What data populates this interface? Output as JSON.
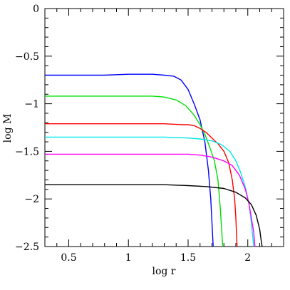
{
  "chart_data": {
    "type": "line",
    "title": "",
    "xlabel": "log r",
    "ylabel": "log M",
    "xlim": [
      0.3,
      2.3
    ],
    "ylim": [
      -2.5,
      0
    ],
    "x_ticks": [
      0.5,
      1,
      1.5,
      2
    ],
    "x_tick_labels": [
      "0.5",
      "1",
      "1.5",
      "2"
    ],
    "y_ticks": [
      0,
      -0.5,
      -1,
      -1.5,
      -2,
      -2.5
    ],
    "y_tick_labels": [
      "0",
      "−0.5",
      "−1",
      "−1.5",
      "−2",
      "−2.5"
    ],
    "grid": false,
    "legend": "none",
    "series": [
      {
        "color": "#0000ff",
        "points": [
          [
            0.3,
            -0.7
          ],
          [
            0.5,
            -0.7
          ],
          [
            0.8,
            -0.7
          ],
          [
            1.0,
            -0.69
          ],
          [
            1.1,
            -0.69
          ],
          [
            1.2,
            -0.69
          ],
          [
            1.3,
            -0.7
          ],
          [
            1.38,
            -0.71
          ],
          [
            1.44,
            -0.75
          ],
          [
            1.5,
            -0.85
          ],
          [
            1.55,
            -1.0
          ],
          [
            1.6,
            -1.17
          ],
          [
            1.64,
            -1.4
          ],
          [
            1.67,
            -1.7
          ],
          [
            1.69,
            -2.0
          ],
          [
            1.7,
            -2.25
          ],
          [
            1.71,
            -2.5
          ]
        ]
      },
      {
        "color": "#00e000",
        "points": [
          [
            0.3,
            -0.92
          ],
          [
            0.6,
            -0.92
          ],
          [
            1.0,
            -0.92
          ],
          [
            1.2,
            -0.92
          ],
          [
            1.3,
            -0.93
          ],
          [
            1.4,
            -0.96
          ],
          [
            1.48,
            -1.02
          ],
          [
            1.55,
            -1.12
          ],
          [
            1.6,
            -1.22
          ],
          [
            1.64,
            -1.32
          ],
          [
            1.68,
            -1.45
          ],
          [
            1.72,
            -1.6
          ],
          [
            1.75,
            -1.8
          ],
          [
            1.77,
            -2.1
          ],
          [
            1.78,
            -2.3
          ],
          [
            1.79,
            -2.5
          ]
        ]
      },
      {
        "color": "#ff0000",
        "points": [
          [
            0.3,
            -1.21
          ],
          [
            0.6,
            -1.21
          ],
          [
            1.0,
            -1.21
          ],
          [
            1.3,
            -1.21
          ],
          [
            1.45,
            -1.22
          ],
          [
            1.5,
            -1.22
          ],
          [
            1.55,
            -1.23
          ],
          [
            1.6,
            -1.26
          ],
          [
            1.65,
            -1.3
          ],
          [
            1.7,
            -1.36
          ],
          [
            1.75,
            -1.42
          ],
          [
            1.8,
            -1.5
          ],
          [
            1.84,
            -1.62
          ],
          [
            1.87,
            -1.8
          ],
          [
            1.89,
            -2.0
          ],
          [
            1.9,
            -2.2
          ],
          [
            1.91,
            -2.5
          ]
        ]
      },
      {
        "color": "#00e8e8",
        "points": [
          [
            0.3,
            -1.35
          ],
          [
            0.6,
            -1.35
          ],
          [
            1.0,
            -1.35
          ],
          [
            1.3,
            -1.35
          ],
          [
            1.5,
            -1.36
          ],
          [
            1.6,
            -1.37
          ],
          [
            1.7,
            -1.39
          ],
          [
            1.78,
            -1.43
          ],
          [
            1.85,
            -1.5
          ],
          [
            1.9,
            -1.6
          ],
          [
            1.94,
            -1.72
          ],
          [
            1.98,
            -1.88
          ],
          [
            2.01,
            -2.05
          ],
          [
            2.03,
            -2.25
          ],
          [
            2.05,
            -2.5
          ]
        ]
      },
      {
        "color": "#ff00ff",
        "points": [
          [
            0.3,
            -1.53
          ],
          [
            0.6,
            -1.53
          ],
          [
            1.0,
            -1.53
          ],
          [
            1.3,
            -1.53
          ],
          [
            1.5,
            -1.53
          ],
          [
            1.6,
            -1.54
          ],
          [
            1.7,
            -1.56
          ],
          [
            1.8,
            -1.6
          ],
          [
            1.87,
            -1.65
          ],
          [
            1.93,
            -1.75
          ],
          [
            1.98,
            -1.9
          ],
          [
            2.01,
            -2.05
          ],
          [
            2.03,
            -2.2
          ],
          [
            2.05,
            -2.35
          ],
          [
            2.06,
            -2.5
          ]
        ]
      },
      {
        "color": "#000000",
        "points": [
          [
            0.3,
            -1.85
          ],
          [
            0.6,
            -1.85
          ],
          [
            1.0,
            -1.85
          ],
          [
            1.3,
            -1.85
          ],
          [
            1.5,
            -1.86
          ],
          [
            1.65,
            -1.87
          ],
          [
            1.8,
            -1.89
          ],
          [
            1.9,
            -1.93
          ],
          [
            1.98,
            -1.99
          ],
          [
            2.03,
            -2.06
          ],
          [
            2.07,
            -2.17
          ],
          [
            2.1,
            -2.32
          ],
          [
            2.11,
            -2.42
          ],
          [
            2.12,
            -2.5
          ]
        ]
      }
    ]
  }
}
